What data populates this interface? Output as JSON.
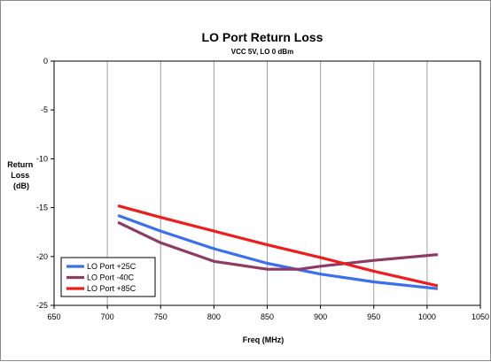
{
  "chart_data": {
    "type": "line",
    "title": "LO Port Return Loss",
    "subtitle": "VCC 5V, LO 0 dBm",
    "xlabel": "Freq (MHz)",
    "ylabel_lines": [
      "Return",
      "Loss",
      "(dB)"
    ],
    "xlim": [
      650,
      1050
    ],
    "ylim": [
      -25,
      0
    ],
    "xticks": [
      650,
      700,
      750,
      800,
      850,
      900,
      950,
      1000,
      1050
    ],
    "yticks": [
      0,
      -5,
      -10,
      -15,
      -20,
      -25
    ],
    "grid": "vertical",
    "legend_position": "bottom-left",
    "series": [
      {
        "name": "LO Port +25C",
        "color": "#3a6ff0",
        "x": [
          710,
          750,
          800,
          850,
          900,
          950,
          1010
        ],
        "y": [
          -15.8,
          -17.4,
          -19.2,
          -20.7,
          -21.8,
          -22.6,
          -23.3
        ]
      },
      {
        "name": "LO Port -40C",
        "color": "#8e3a64",
        "x": [
          710,
          750,
          800,
          850,
          880,
          900,
          950,
          1010
        ],
        "y": [
          -16.5,
          -18.6,
          -20.5,
          -21.3,
          -21.3,
          -21.0,
          -20.4,
          -19.8
        ]
      },
      {
        "name": "LO Port +85C",
        "color": "#ee1c1c",
        "x": [
          710,
          750,
          800,
          850,
          900,
          950,
          1010
        ],
        "y": [
          -14.8,
          -16.0,
          -17.4,
          -18.8,
          -20.1,
          -21.5,
          -23.0
        ]
      }
    ]
  }
}
